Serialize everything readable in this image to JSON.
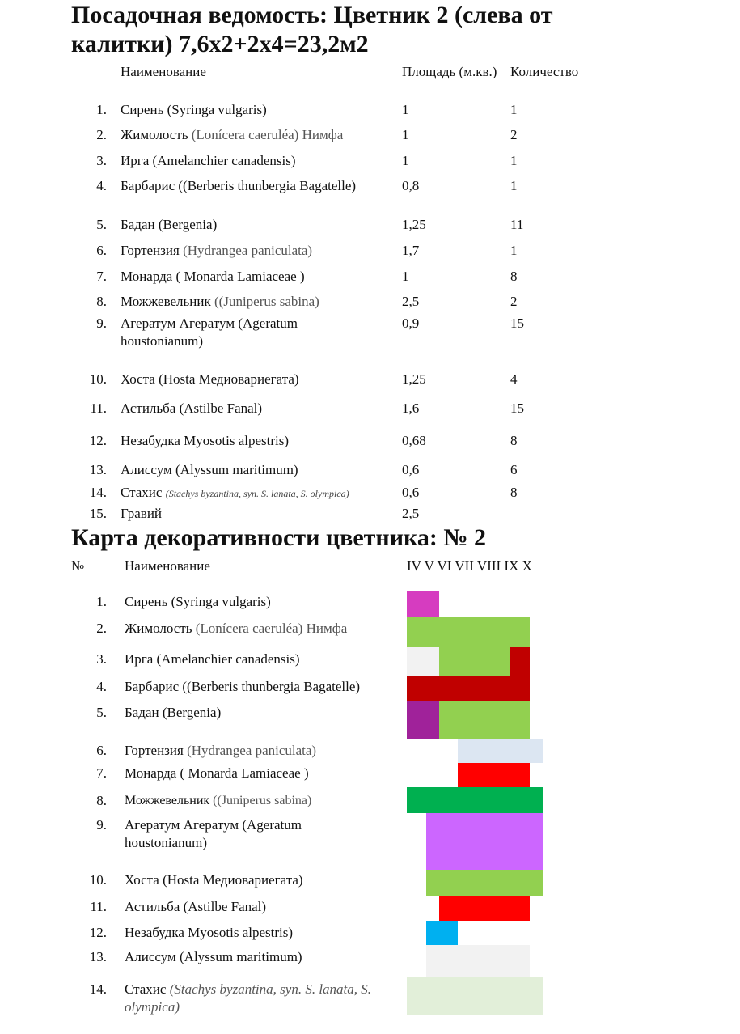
{
  "planting": {
    "title_line1": "Посадочная ведомость: Цветник 2 (слева от",
    "title_line2": "калитки) 7,6х2+2х4=23,2м2",
    "headers": {
      "name": "Наименование",
      "area": "Площадь (м.кв.)",
      "qty": "Количество"
    },
    "rows": [
      {
        "n": "1.",
        "name": "Сирень (Syringa  vulgaris)",
        "grey": "",
        "tail": "",
        "area": "1",
        "qty": "1"
      },
      {
        "n": "2.",
        "name": "Жимолость ",
        "grey": "(Lonícera caeruléa) Нимфа",
        "tail": "",
        "area": "1",
        "qty": "2"
      },
      {
        "n": "3.",
        "name": "Ирга (Amelanchier canadensis)",
        "grey": "",
        "tail": "",
        "area": "1",
        "qty": "1"
      },
      {
        "n": "4.",
        "name": "Барбарис ((Berberis thunbergia  Bagatelle)",
        "grey": "",
        "tail": "",
        "area": "0,8",
        "qty": "1"
      },
      {
        "n": "5.",
        "name": "Бадан (Bergenia)",
        "grey": "",
        "tail": "",
        "area": "1,25",
        "qty": "11"
      },
      {
        "n": "6.",
        "name": "Гортензия ",
        "grey": "(Hydrangea paniculata)",
        "tail": "",
        "area": "1,7",
        "qty": "1"
      },
      {
        "n": "7.",
        "name": "Монарда ( Monarda Lamiaceae )",
        "grey": "",
        "tail": "",
        "area": "1",
        "qty": "8"
      },
      {
        "n": "8.",
        "name": "Можжевельник ",
        "grey": "((Juniperus sabina)",
        "tail": "",
        "area": "2,5",
        "qty": "2"
      },
      {
        "n": "9.",
        "name": "Агератум Агератум (Ageratum",
        "grey": "",
        "tail": "houstonianum)",
        "area": "0,9",
        "qty": "15"
      },
      {
        "n": "10.",
        "name": "Хоста (Hosta Медиовариегата)",
        "grey": "",
        "tail": "",
        "area": "1,25",
        "qty": "4"
      },
      {
        "n": "11.",
        "name": "Астильба (Astilbe Fanal)",
        "grey": "",
        "tail": "",
        "area": "1,6",
        "qty": "15"
      },
      {
        "n": "12.",
        "name": "Незабудка Myosotis alpestris)",
        "grey": "",
        "tail": "",
        "area": "0,68",
        "qty": "8"
      },
      {
        "n": "13.",
        "name": "Алиссум (Alyssum maritimum)",
        "grey": "",
        "tail": "",
        "area": "0,6",
        "qty": "6"
      },
      {
        "n": "14.",
        "name": "Стахис ",
        "small": "(Stachys byzantina, syn. S. lanata, S. olympica)",
        "grey": "",
        "tail": "",
        "area": "0,6",
        "qty": "8"
      },
      {
        "n": "15.",
        "name": "Гравий",
        "grey": "",
        "tail": "",
        "area": "2,5",
        "qty": ""
      }
    ]
  },
  "decor": {
    "title": "Карта декоративности цветника: № 2",
    "headers": {
      "num": "№",
      "name": "Наименование",
      "months": "IV V VI VII VIII IX X"
    },
    "months": [
      "IV",
      "V",
      "VI",
      "VII",
      "VIII",
      "IX",
      "X"
    ],
    "colors": {
      "magenta": "#d63cc0",
      "green": "#92d050",
      "lightgray": "#f2f2f2",
      "darkred": "#c00000",
      "purple": "#a0229a",
      "lightblue": "#dce6f2",
      "red": "#ff0000",
      "darkgreen": "#00b050",
      "violet": "#cc66ff",
      "blue": "#00b0f0",
      "palegreen": "#e2efd9"
    },
    "rows": [
      {
        "n": "1.",
        "name": "Сирень (Syringa vulgaris)",
        "grey": "",
        "tail": "",
        "bars": [
          [
            "IV",
            "V",
            "magenta"
          ]
        ]
      },
      {
        "n": "2.",
        "name": "Жимолость ",
        "grey": "(Lonícera caeruléa) Нимфа",
        "tail": "",
        "bars": [
          [
            "IV",
            "IX",
            "green"
          ]
        ]
      },
      {
        "n": "3.",
        "name": "Ирга (Amelanchier canadensis)",
        "grey": "",
        "tail": "",
        "bars": [
          [
            "IV",
            "V",
            "lightgray"
          ],
          [
            "VI",
            "VIII",
            "green"
          ],
          [
            "IX",
            "IX",
            "darkred"
          ]
        ]
      },
      {
        "n": "4.",
        "name": "Барбарис ((Berberis thunbergia  Bagatelle)",
        "grey": "",
        "tail": "",
        "bars": [
          [
            "IV",
            "IX",
            "darkred"
          ]
        ]
      },
      {
        "n": "5.",
        "name": "Бадан (Bergenia)",
        "grey": "",
        "tail": "",
        "bars": [
          [
            "IV",
            "V",
            "purple"
          ],
          [
            "VI",
            "IX",
            "green"
          ]
        ]
      },
      {
        "n": "6.",
        "name": "Гортензия ",
        "grey": "(Hydrangea paniculata)",
        "tail": "",
        "bars": [
          [
            "VII",
            "X",
            "lightblue"
          ]
        ]
      },
      {
        "n": "7.",
        "name": "Монарда ( Monarda Lamiaceae )",
        "grey": "",
        "tail": "",
        "bars": [
          [
            "VII",
            "IX",
            "red"
          ]
        ]
      },
      {
        "n": "8.",
        "name": "Можжевельник ",
        "grey": "((Juniperus sabina)",
        "tail": "",
        "bars": [
          [
            "IV",
            "X",
            "darkgreen"
          ]
        ]
      },
      {
        "n": "9.",
        "name": "Агератум Агератум (Ageratum",
        "grey": "",
        "tail": "houstonianum)",
        "bars": [
          [
            "V",
            "X",
            "violet"
          ]
        ]
      },
      {
        "n": "10.",
        "name": "Хоста (Hosta Медиовариегата)",
        "grey": "",
        "tail": "",
        "bars": [
          [
            "V",
            "X",
            "green"
          ]
        ]
      },
      {
        "n": "11.",
        "name": "Астильба (Astilbe Fanal)",
        "grey": "",
        "tail": "",
        "bars": [
          [
            "VI",
            "IX",
            "red"
          ]
        ]
      },
      {
        "n": "12.",
        "name": "Незабудка Myosotis alpestris)",
        "grey": "",
        "tail": "",
        "bars": [
          [
            "V",
            "VI",
            "blue"
          ]
        ]
      },
      {
        "n": "13.",
        "name": "Алиссум (Alyssum maritimum)",
        "grey": "",
        "tail": "",
        "bars": [
          [
            "V",
            "IX",
            "lightgray"
          ]
        ]
      },
      {
        "n": "14.",
        "name": "Стахис ",
        "italic": "(Stachys byzantina, syn. S. lanata, S.",
        "tail": "olympica)",
        "grey": "",
        "bars": [
          [
            "IV",
            "X",
            "palegreen"
          ]
        ]
      }
    ]
  }
}
